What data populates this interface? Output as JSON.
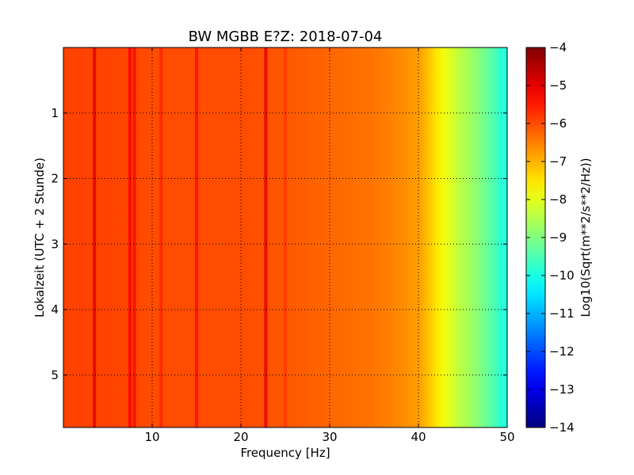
{
  "chart_data": {
    "type": "heatmap",
    "title": "BW MGBB E?Z: 2018-07-04",
    "xlabel": "Frequency [Hz]",
    "ylabel": "Lokalzeit (UTC + 2 Stunde)",
    "xlim": [
      0,
      50
    ],
    "ylim": [
      5.8,
      0
    ],
    "x_ticks": [
      10,
      20,
      30,
      40,
      50
    ],
    "y_ticks": [
      1,
      2,
      3,
      4,
      5
    ],
    "grid": true,
    "colormap": "jet",
    "colorbar": {
      "label": "Log10(Sqrt(m**2/s**2/Hz))",
      "range": [
        -14,
        -4
      ],
      "ticks": [
        -14,
        -13,
        -12,
        -11,
        -10,
        -9,
        -8,
        -7,
        -6,
        -5,
        -4
      ]
    },
    "spectrum_profile": {
      "frequency_hz": [
        0,
        5,
        10,
        15,
        20,
        25,
        30,
        35,
        38,
        40,
        41,
        42,
        43,
        44,
        45,
        46,
        47,
        48,
        49,
        50
      ],
      "log10_amplitude": [
        -5.9,
        -5.9,
        -6.0,
        -6.0,
        -6.0,
        -6.1,
        -6.25,
        -6.4,
        -6.6,
        -6.8,
        -7.1,
        -7.5,
        -7.9,
        -8.2,
        -8.5,
        -8.7,
        -9.0,
        -9.3,
        -9.7,
        -10.0
      ]
    },
    "spectral_lines": [
      {
        "frequency_hz": 3.5,
        "log10_amplitude": -5.0
      },
      {
        "frequency_hz": 7.5,
        "log10_amplitude": -5.2
      },
      {
        "frequency_hz": 8.0,
        "log10_amplitude": -5.3
      },
      {
        "frequency_hz": 11.0,
        "log10_amplitude": -5.6
      },
      {
        "frequency_hz": 15.0,
        "log10_amplitude": -5.4
      },
      {
        "frequency_hz": 22.8,
        "log10_amplitude": -5.0
      },
      {
        "frequency_hz": 25.0,
        "log10_amplitude": -5.8
      }
    ]
  }
}
